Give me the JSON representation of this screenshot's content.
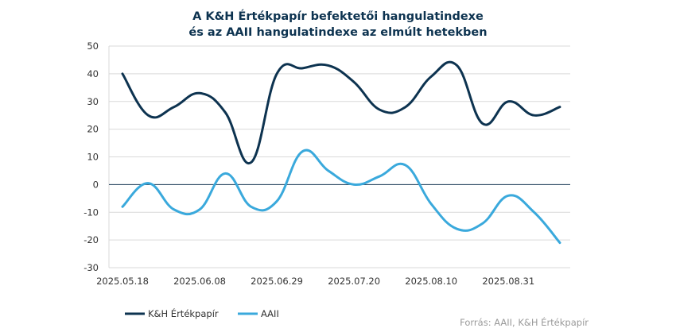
{
  "chart_data": {
    "type": "line",
    "title_lines": [
      "A K&H Értékpapír befektetői hangulatindexe",
      "és az AAII hangulatindexe  az elmúlt hetekben"
    ],
    "xlabel": "",
    "ylabel": "",
    "ylim": [
      -30,
      50
    ],
    "yticks": [
      -30,
      -20,
      -10,
      0,
      10,
      20,
      30,
      40,
      50
    ],
    "x": [
      "2025.05.18",
      "2025.05.25",
      "2025.06.01",
      "2025.06.08",
      "2025.06.15",
      "2025.06.22",
      "2025.06.29",
      "2025.07.06",
      "2025.07.13",
      "2025.07.20",
      "2025.07.27",
      "2025.08.03",
      "2025.08.10",
      "2025.08.17",
      "2025.08.24",
      "2025.08.31",
      "2025.09.07",
      "2025.09.14"
    ],
    "xtick_labels": [
      "2025.05.18",
      "2025.06.08",
      "2025.06.29",
      "2025.07.20",
      "2025.08.10",
      "2025.08.31"
    ],
    "grid": true,
    "legend_position": "bottom-left",
    "series": [
      {
        "name": "K&H Értékpapír",
        "color": "#0d3350",
        "values": [
          40,
          25,
          28,
          33,
          26,
          8,
          40,
          42,
          43,
          37,
          27,
          28,
          39,
          43,
          22,
          30,
          25,
          28
        ]
      },
      {
        "name": "AAII",
        "color": "#3aa9dc",
        "values": [
          -8,
          0.5,
          -9,
          -9,
          4,
          -8,
          -6,
          12,
          5,
          0,
          3,
          7,
          -7,
          -16,
          -14,
          -4,
          -10,
          -21
        ]
      }
    ],
    "source": "Forrás: AAII, K&H Értékpapír"
  }
}
